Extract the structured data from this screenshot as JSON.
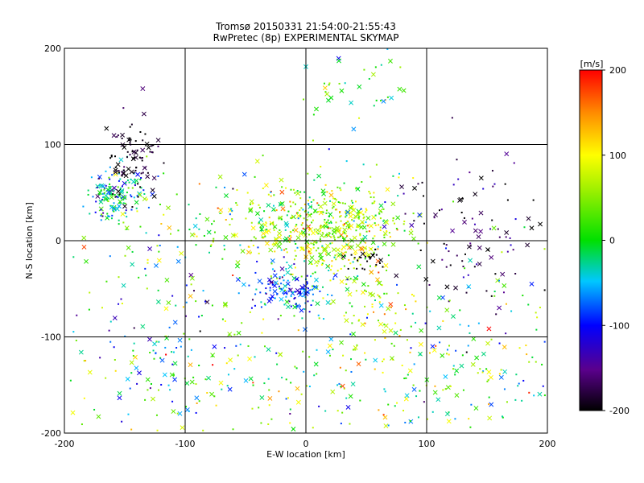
{
  "chart_data": {
    "type": "scatter",
    "title": "Tromsø 20150331 21:54:00-21:55:43",
    "subtitle": "RwPretec (8p) EXPERIMENTAL SKYMAP",
    "xlabel": "E-W location [km]",
    "ylabel": "N-S location [km]",
    "xlim": [
      -200,
      200
    ],
    "ylim": [
      -200,
      200
    ],
    "x_ticks": [
      "-200",
      "-100",
      "0",
      "100",
      "200"
    ],
    "y_ticks": [
      "-200",
      "-100",
      "0",
      "100",
      "200"
    ],
    "grid": true,
    "marker_types": [
      "cross",
      "dot"
    ],
    "colorbar": {
      "label": "[m/s]",
      "range": [
        -200,
        200
      ],
      "ticks": [
        "-200",
        "-100",
        "0",
        "100",
        "200"
      ],
      "colormap": "black-purple-blue-cyan-green-yellow-orange-red"
    },
    "clusters": [
      {
        "x": 20,
        "y": 10,
        "sx": 30,
        "sy": 25,
        "n": 500,
        "v_mean": 50,
        "v_sd": 55
      },
      {
        "x": -10,
        "y": -50,
        "sx": 16,
        "sy": 12,
        "n": 140,
        "v_mean": -80,
        "v_sd": 40
      },
      {
        "x": -155,
        "y": 50,
        "sx": 14,
        "sy": 12,
        "n": 140,
        "v_mean": -40,
        "v_sd": 50
      },
      {
        "x": -145,
        "y": 85,
        "sx": 12,
        "sy": 22,
        "n": 90,
        "v_mean": -190,
        "v_sd": 15
      },
      {
        "x": 140,
        "y": 10,
        "sx": 35,
        "sy": 45,
        "n": 110,
        "v_mean": -170,
        "v_sd": 40
      },
      {
        "x": 50,
        "y": -20,
        "sx": 8,
        "sy": 6,
        "n": 25,
        "v_mean": -200,
        "v_sd": 5
      },
      {
        "x": 60,
        "y": -70,
        "sx": 15,
        "sy": 20,
        "n": 60,
        "v_mean": 80,
        "v_sd": 40
      },
      {
        "x": -60,
        "y": 20,
        "sx": 40,
        "sy": 25,
        "n": 120,
        "v_mean": 40,
        "v_sd": 60
      },
      {
        "x": 45,
        "y": 160,
        "sx": 25,
        "sy": 20,
        "n": 40,
        "v_mean": 20,
        "v_sd": 70
      },
      {
        "x": 0,
        "y": -140,
        "sx": 110,
        "sy": 40,
        "n": 320,
        "v_mean": 20,
        "v_sd": 70
      },
      {
        "x": -130,
        "y": -60,
        "sx": 40,
        "sy": 50,
        "n": 120,
        "v_mean": -20,
        "v_sd": 80
      },
      {
        "x": 150,
        "y": -120,
        "sx": 40,
        "sy": 60,
        "n": 120,
        "v_mean": 10,
        "v_sd": 60
      }
    ]
  }
}
